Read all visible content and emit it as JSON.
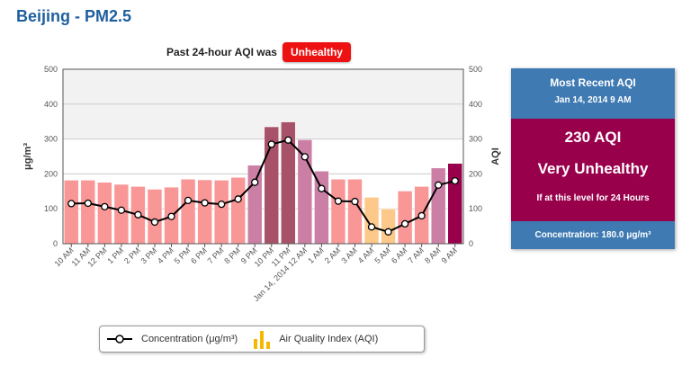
{
  "page_title": "Beijing - PM2.5",
  "subhead": {
    "label": "Past 24-hour AQI was",
    "badge": "Unhealthy",
    "badge_color": "#ee1111"
  },
  "legend": {
    "concentration_label": "Concentration (μg/m³)",
    "aqi_label": "Air Quality Index (AQI)"
  },
  "panel": {
    "title": "Most Recent AQI",
    "date": "Jan 14, 2014 9 AM",
    "aqi_value": "230 AQI",
    "category": "Very Unhealthy",
    "note": "If at this level for 24 Hours",
    "concentration": "Concentration: 180.0 μg/m³",
    "header_color": "#3f7ab3",
    "category_color": "#99004c"
  },
  "chart_data": {
    "type": "bar",
    "categories": [
      "10 AM",
      "11 AM",
      "12 PM",
      "1 PM",
      "2 PM",
      "3 PM",
      "4 PM",
      "5 PM",
      "6 PM",
      "7 PM",
      "8 PM",
      "9 PM",
      "10 PM",
      "11 PM",
      "Jan 14, 2014 12 AM",
      "1 AM",
      "2 AM",
      "3 AM",
      "4 AM",
      "5 AM",
      "6 AM",
      "7 AM",
      "8 AM",
      "9 AM"
    ],
    "series": [
      {
        "name": "Air Quality Index (AQI)",
        "type": "bar",
        "values": [
          182,
          182,
          176,
          170,
          164,
          156,
          162,
          185,
          183,
          182,
          190,
          225,
          335,
          349,
          298,
          208,
          185,
          185,
          133,
          100,
          151,
          164,
          217,
          230
        ],
        "colors": [
          "#f99797",
          "#f99797",
          "#f99797",
          "#f99797",
          "#f99797",
          "#f99797",
          "#f99797",
          "#f99797",
          "#f99797",
          "#f99797",
          "#f99797",
          "#cc7fa5",
          "#a85269",
          "#a85269",
          "#cc7fa5",
          "#cc7fa5",
          "#f99797",
          "#f99797",
          "#fdc98a",
          "#fdc98a",
          "#f99797",
          "#f99797",
          "#cc7fa5",
          "#99004c"
        ]
      },
      {
        "name": "Concentration (μg/m³)",
        "type": "line",
        "values": [
          115,
          116,
          106,
          96,
          83,
          62,
          78,
          124,
          117,
          113,
          128,
          176,
          285,
          297,
          249,
          158,
          122,
          121,
          48,
          34,
          57,
          80,
          168,
          180
        ]
      }
    ],
    "ylabel": "μg/m³",
    "y2label": "AQI",
    "ylim": [
      0,
      500
    ],
    "y2lim": [
      0,
      500
    ],
    "yticks": [
      "0",
      "100",
      "200",
      "300",
      "400",
      "500"
    ],
    "grid": true
  }
}
